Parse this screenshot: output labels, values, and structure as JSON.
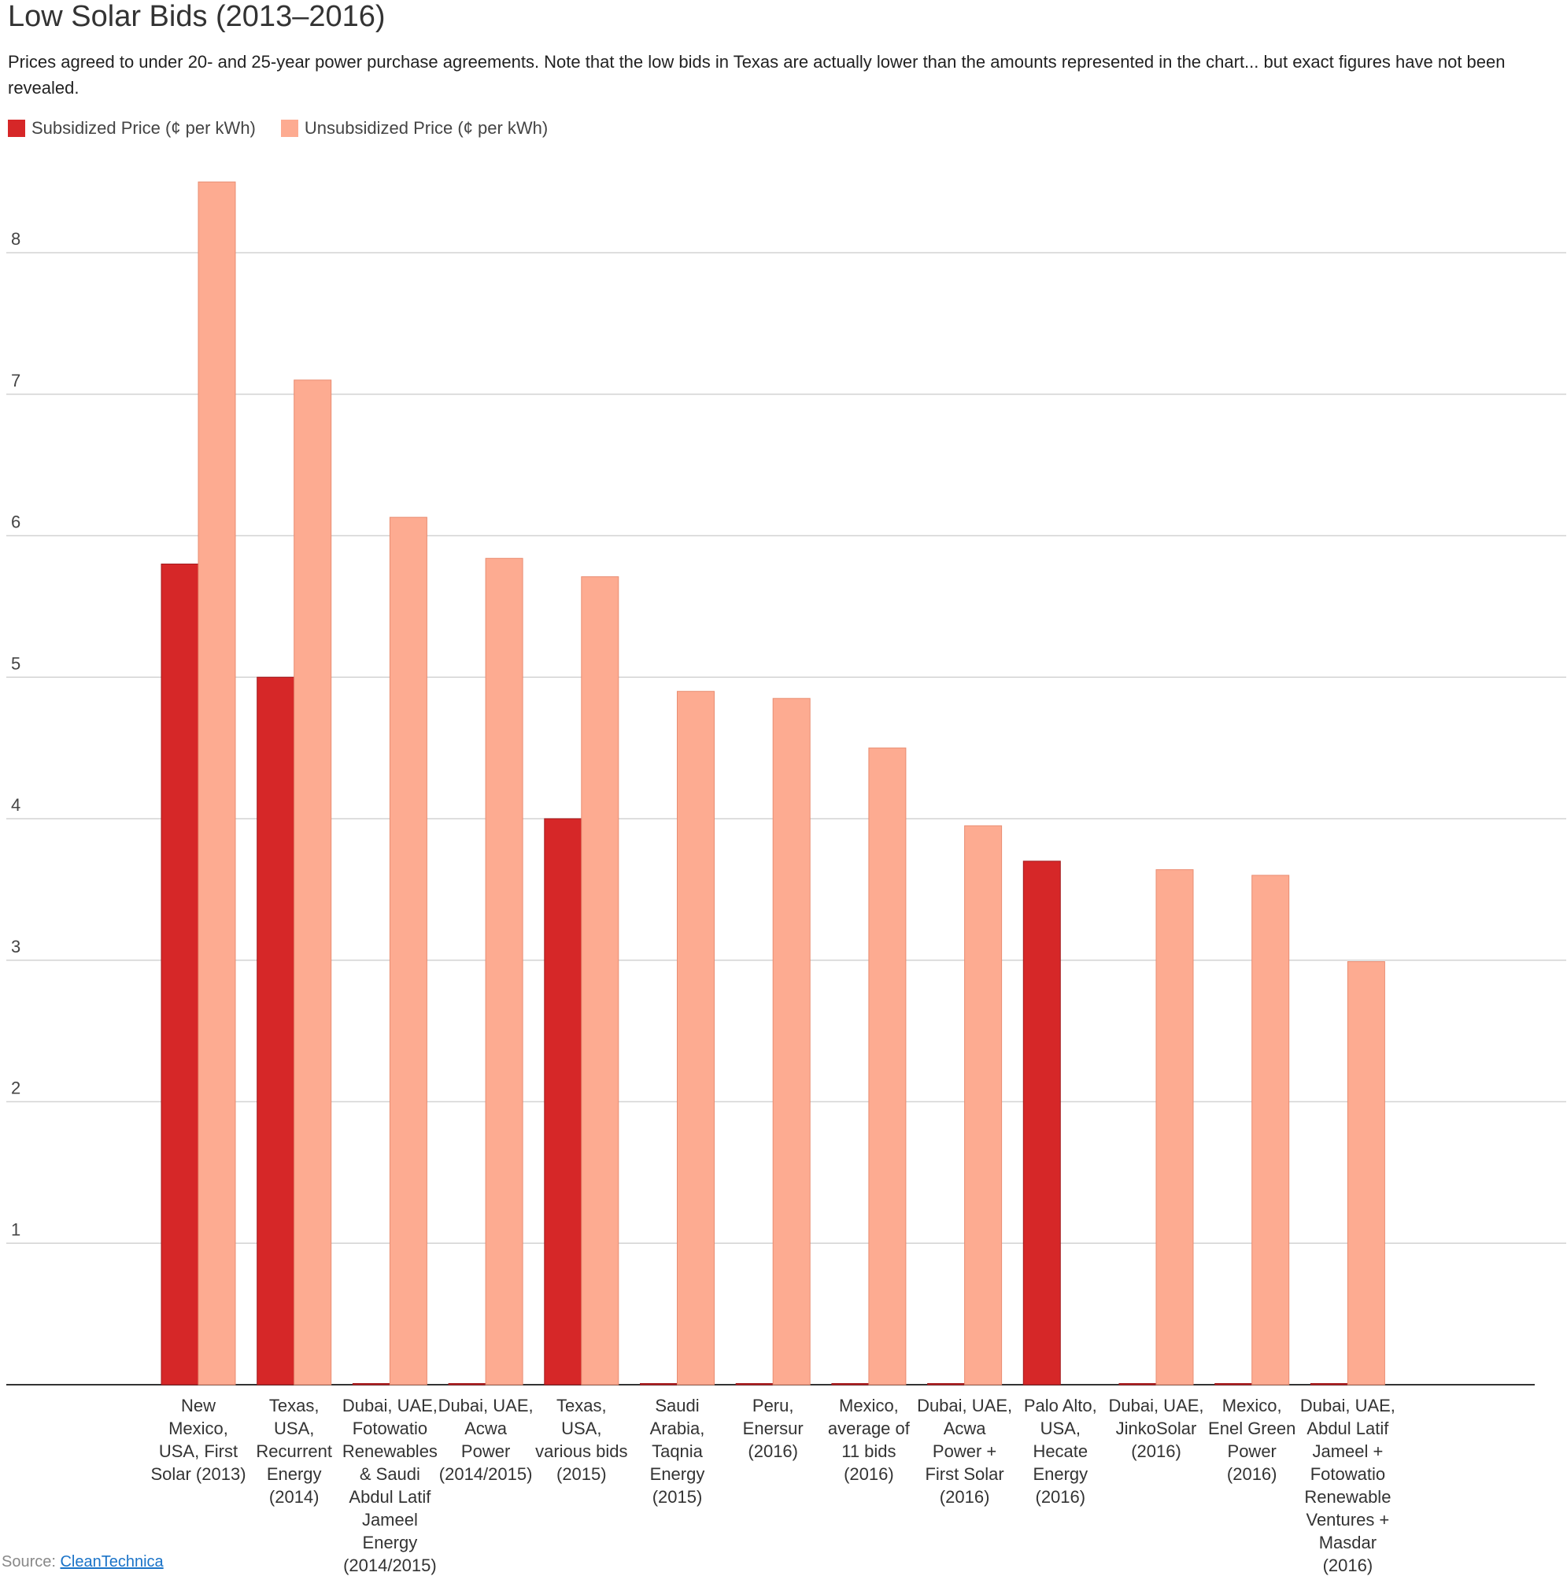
{
  "chart_data": {
    "type": "bar",
    "title": "Low Solar Bids (2013–2016)",
    "subtitle": "Prices agreed to under 20- and 25-year power purchase agreements. Note that the low bids in Texas are actually lower than the amounts represented in the chart... but exact figures have not been revealed.",
    "xlabel": "",
    "ylabel": "",
    "ylim": [
      0,
      8.7
    ],
    "yticks": [
      "1",
      "2",
      "3",
      "4",
      "5",
      "6",
      "7",
      "8"
    ],
    "grid": true,
    "legend_position": "top-left",
    "categories": [
      [
        "New",
        "Mexico,",
        "USA, First",
        "Solar (2013)"
      ],
      [
        "Texas,",
        "USA,",
        "Recurrent",
        "Energy",
        "(2014)"
      ],
      [
        "Dubai, UAE,",
        "Fotowatio",
        "Renewables",
        "& Saudi",
        "Abdul Latif",
        "Jameel",
        "Energy",
        "(2014/2015)"
      ],
      [
        "Dubai, UAE,",
        "Acwa",
        "Power",
        "(2014/2015)"
      ],
      [
        "Texas,",
        "USA,",
        "various bids",
        "(2015)"
      ],
      [
        "Saudi",
        "Arabia,",
        "Taqnia",
        "Energy",
        "(2015)"
      ],
      [
        "Peru,",
        "Enersur",
        "(2016)"
      ],
      [
        "Mexico,",
        "average of",
        "11 bids",
        "(2016)"
      ],
      [
        "Dubai, UAE,",
        "Acwa",
        "Power +",
        "First Solar",
        "(2016)"
      ],
      [
        "Palo Alto,",
        "USA,",
        "Hecate",
        "Energy",
        "(2016)"
      ],
      [
        "Dubai, UAE,",
        "JinkoSolar",
        "(2016)"
      ],
      [
        "Mexico,",
        "Enel Green",
        "Power",
        "(2016)"
      ],
      [
        "Dubai, UAE,",
        "Abdul Latif",
        "Jameel +",
        "Fotowatio",
        "Renewable",
        "Ventures +",
        "Masdar",
        "(2016)"
      ]
    ],
    "series": [
      {
        "name": "Subsidized Price (¢ per kWh)",
        "color": "#d62728",
        "values": [
          5.8,
          5.0,
          0,
          0,
          4.0,
          0,
          0,
          0,
          0,
          3.7,
          0,
          0,
          0
        ]
      },
      {
        "name": "Unsubsidized Price (¢ per kWh)",
        "color": "#fdab91",
        "values": [
          8.5,
          7.1,
          6.13,
          5.84,
          5.71,
          4.9,
          4.85,
          4.5,
          3.95,
          null,
          3.64,
          3.6,
          2.99
        ]
      }
    ]
  },
  "source": {
    "prefix": "Source: ",
    "link_text": "CleanTechnica"
  }
}
